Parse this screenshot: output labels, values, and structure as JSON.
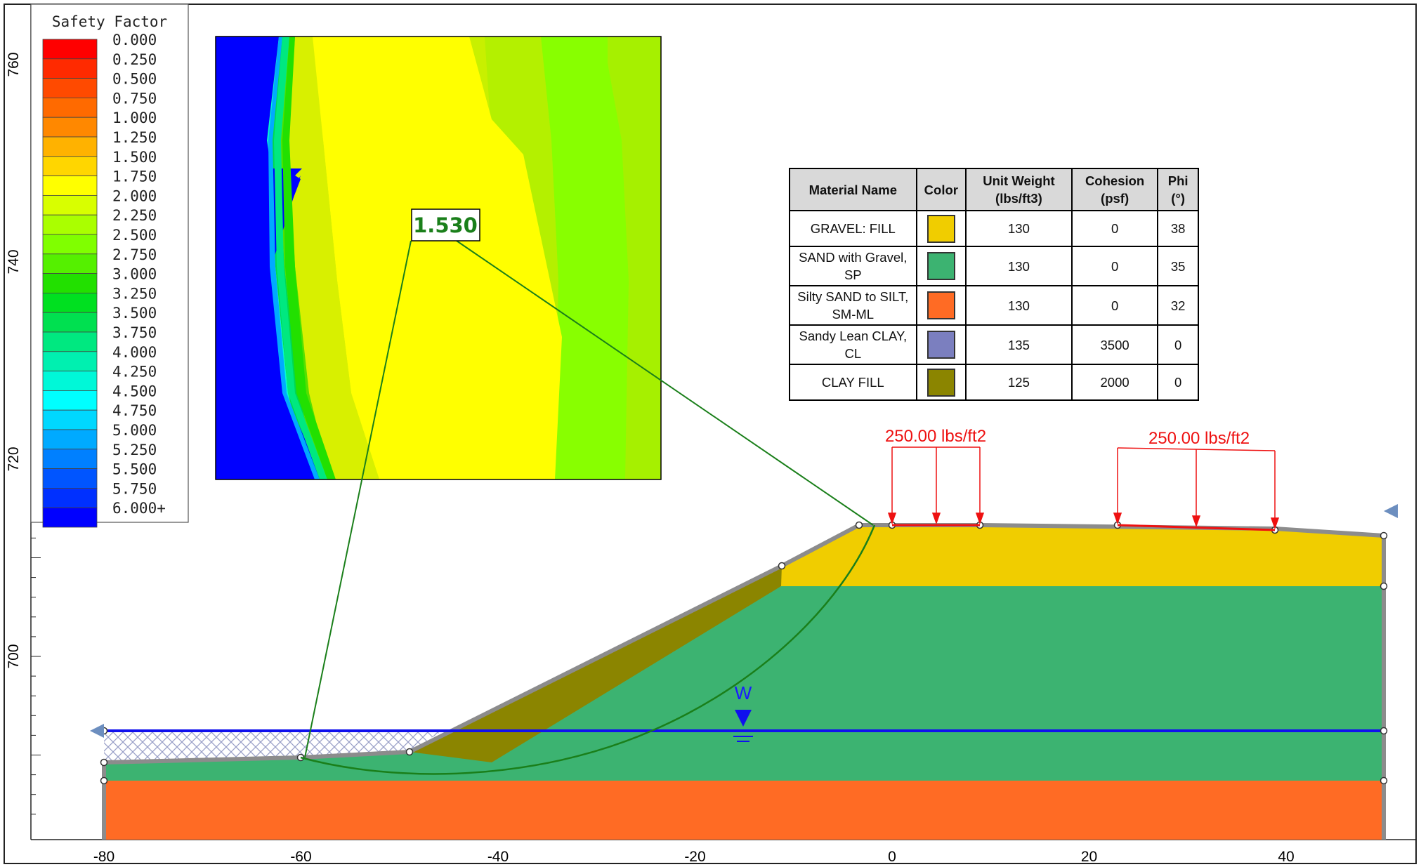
{
  "legend": {
    "title": "Safety Factor",
    "items": [
      {
        "label": "0.000",
        "color": "#ff0000"
      },
      {
        "label": "0.250",
        "color": "#ff2a00"
      },
      {
        "label": "0.500",
        "color": "#ff4a00"
      },
      {
        "label": "0.750",
        "color": "#ff6a00"
      },
      {
        "label": "1.000",
        "color": "#ff8800"
      },
      {
        "label": "1.250",
        "color": "#ffb200"
      },
      {
        "label": "1.500",
        "color": "#ffd600"
      },
      {
        "label": "1.750",
        "color": "#ffff00"
      },
      {
        "label": "2.000",
        "color": "#d8ff00"
      },
      {
        "label": "2.250",
        "color": "#aaff00"
      },
      {
        "label": "2.500",
        "color": "#80ff00"
      },
      {
        "label": "2.750",
        "color": "#55f000"
      },
      {
        "label": "3.000",
        "color": "#22e000"
      },
      {
        "label": "3.250",
        "color": "#00e020"
      },
      {
        "label": "3.500",
        "color": "#00e050"
      },
      {
        "label": "3.750",
        "color": "#00e880"
      },
      {
        "label": "4.000",
        "color": "#00f0b0"
      },
      {
        "label": "4.250",
        "color": "#00f8d8"
      },
      {
        "label": "4.500",
        "color": "#00ffff"
      },
      {
        "label": "4.750",
        "color": "#00d8ff"
      },
      {
        "label": "5.000",
        "color": "#00aaff"
      },
      {
        "label": "5.250",
        "color": "#0080ff"
      },
      {
        "label": "5.500",
        "color": "#0055ff"
      },
      {
        "label": "5.750",
        "color": "#0030ff"
      },
      {
        "label": "6.000+",
        "color": "#0000ff"
      }
    ]
  },
  "axes": {
    "x_ticks": [
      "-80",
      "-60",
      "-40",
      "-20",
      "0",
      "20",
      "40"
    ],
    "y_ticks": [
      "700",
      "720",
      "740",
      "760"
    ]
  },
  "critical_surface": {
    "safety_factor": "1.530"
  },
  "loads": [
    {
      "label": "250.00 lbs/ft2"
    },
    {
      "label": "250.00 lbs/ft2"
    }
  ],
  "water_table": {
    "label": "W"
  },
  "materials": {
    "headers": [
      "Material Name",
      "Color",
      "Unit Weight (lbs/ft3)",
      "Cohesion (psf)",
      "Phi (°)"
    ],
    "rows": [
      {
        "name": "GRAVEL: FILL",
        "color": "#f0cd00",
        "unit_weight": "130",
        "cohesion": "0",
        "phi": "38"
      },
      {
        "name": "SAND with Gravel, SP",
        "color": "#3cb371",
        "unit_weight": "130",
        "cohesion": "0",
        "phi": "35"
      },
      {
        "name": "Silty SAND to SILT, SM-ML",
        "color": "#ff6b24",
        "unit_weight": "130",
        "cohesion": "0",
        "phi": "32"
      },
      {
        "name": "Sandy Lean CLAY, CL",
        "color": "#7b7fbf",
        "unit_weight": "135",
        "cohesion": "3500",
        "phi": "0"
      },
      {
        "name": "CLAY FILL",
        "color": "#8b8500",
        "unit_weight": "125",
        "cohesion": "2000",
        "phi": "0"
      }
    ]
  }
}
